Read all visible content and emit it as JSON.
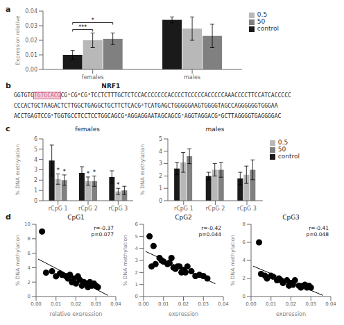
{
  "chart_data": [
    {
      "type": "bar",
      "panel_label": "a",
      "categories": [
        "females",
        "males"
      ],
      "series": [
        {
          "name": "control",
          "color": "#1a1a1a",
          "values": [
            0.01,
            0.034
          ],
          "errors": [
            0.003,
            0.002
          ]
        },
        {
          "name": "0.5",
          "color": "#b8b8b8",
          "values": [
            0.02,
            0.028
          ],
          "errors": [
            0.005,
            0.008
          ]
        },
        {
          "name": "50",
          "color": "#808080",
          "values": [
            0.021,
            0.023
          ],
          "errors": [
            0.004,
            0.008
          ]
        }
      ],
      "ylabel": "Expression relative",
      "ylim": [
        0,
        0.04
      ],
      "yticks": [
        {
          "value": 0,
          "label": "0.00"
        },
        0.01,
        0.02,
        0.03,
        0.04
      ],
      "legend": "right",
      "annotations": [
        {
          "text": "***",
          "category": "females",
          "between": [
            "control",
            "0.5"
          ]
        },
        {
          "text": "*",
          "category": "females",
          "between": [
            "control",
            "50"
          ]
        }
      ]
    },
    {
      "type": "sequence",
      "panel_label": "b",
      "title": "NRF1",
      "lines": [
        [
          {
            "text": "GGTGTG"
          },
          {
            "text": "TGTGCACG",
            "color": "#cc6688",
            "background": "#f5ccd8"
          },
          {
            "text": "CG¹CG²CG³TCCTCTTTGCTCTCCACCCCCCCACCCCTCCCCCACCCCCAAACCCCTTCCATCACCCCC"
          }
        ],
        [
          {
            "text": "CCCACTGCTAAGACTCTTGGCTGAGGCTGCTTCTCACG⁴TCATGAGCTGGGGGAAGTGGGGTAGCCAGGGGGGTGGGAA"
          }
        ],
        [
          {
            "text": "ACCTGAGTCCG⁵TGGTGCCTCCTCCTGGCAGCG⁶AGGAGGAATAGCAGCG⁷AGGTAGGACG⁸GCTTAGGGGTGAGGGGAC"
          }
        ]
      ]
    },
    {
      "type": "bar",
      "panel_label": "c",
      "title": "females",
      "categories": [
        "rCpG 1",
        "rCpG 2",
        "rCpG 3"
      ],
      "series": [
        {
          "name": "control",
          "color": "#1a1a1a",
          "values": [
            3.9,
            2.7,
            2.3
          ],
          "errors": [
            1.5,
            0.6,
            0.6
          ]
        },
        {
          "name": "0.5",
          "color": "#b8b8b8",
          "values": [
            2.1,
            1.9,
            0.9
          ],
          "errors": [
            0.5,
            0.4,
            0.3
          ]
        },
        {
          "name": "50",
          "color": "#808080",
          "values": [
            2.0,
            1.9,
            1.0
          ],
          "errors": [
            0.5,
            0.5,
            0.4
          ]
        }
      ],
      "ylabel": "% DNA methylation",
      "ylim": [
        0,
        6
      ],
      "yticks": [
        0,
        1,
        2,
        3,
        4,
        5,
        6
      ],
      "annotations": [
        {
          "text": "*",
          "category": "rCpG 1",
          "series": "0.5"
        },
        {
          "text": "*",
          "category": "rCpG 1",
          "series": "50"
        },
        {
          "text": "*",
          "category": "rCpG 2",
          "series": "0.5"
        },
        {
          "text": "*",
          "category": "rCpG 2",
          "series": "50"
        },
        {
          "text": "*",
          "category": "rCpG 3",
          "series": "0.5"
        }
      ]
    },
    {
      "type": "bar",
      "title": "males",
      "categories": [
        "rCpG 1",
        "rCpG 2",
        "rCpG 3"
      ],
      "series": [
        {
          "name": "control",
          "color": "#1a1a1a",
          "values": [
            2.6,
            2.0,
            1.8
          ],
          "errors": [
            0.5,
            0.3,
            0.5
          ]
        },
        {
          "name": "0.5",
          "color": "#b8b8b8",
          "values": [
            3.1,
            2.5,
            2.1
          ],
          "errors": [
            0.8,
            0.5,
            0.7
          ]
        },
        {
          "name": "50",
          "color": "#808080",
          "values": [
            3.6,
            2.5,
            2.5
          ],
          "errors": [
            0.6,
            0.6,
            0.8
          ]
        }
      ],
      "ylabel": "% DNA methylation",
      "ylim": [
        0,
        5
      ],
      "yticks": [
        0,
        1,
        2,
        3,
        4,
        5
      ],
      "legend": "right"
    },
    {
      "type": "scatter",
      "panel_label": "d",
      "title": "CpG1",
      "color": "black",
      "x": [
        0.003,
        0.005,
        0.008,
        0.01,
        0.012,
        0.013,
        0.015,
        0.016,
        0.017,
        0.018,
        0.019,
        0.02,
        0.021,
        0.022,
        0.023,
        0.024,
        0.025,
        0.026,
        0.027,
        0.028,
        0.029,
        0.03,
        0.031
      ],
      "values": [
        9.0,
        3.3,
        3.5,
        2.8,
        3.2,
        3.0,
        2.8,
        2.5,
        3.0,
        2.0,
        2.5,
        1.8,
        2.8,
        2.3,
        1.5,
        2.0,
        1.8,
        1.3,
        2.0,
        1.5,
        1.8,
        1.5,
        1.3
      ],
      "fit": {
        "x": [
          0.001,
          0.036
        ],
        "values": [
          5.1958,
          0.1585
        ]
      },
      "annotations": [
        {
          "text": "r=-0.37"
        },
        {
          "text": "p=0.077"
        }
      ],
      "xlabel": "relative expression",
      "ylabel": "% DNA methylation",
      "xlim": [
        0,
        0.04
      ],
      "ylim": [
        0,
        10
      ],
      "yticks": [
        0,
        2,
        4,
        6,
        8,
        10
      ],
      "xticks": [
        {
          "value": 0,
          "label": "0.00"
        },
        0.01,
        0.02,
        0.03,
        0.04
      ]
    },
    {
      "type": "scatter",
      "title": "CpG2",
      "color": "black",
      "x": [
        0.003,
        0.004,
        0.005,
        0.006,
        0.008,
        0.009,
        0.01,
        0.012,
        0.013,
        0.014,
        0.015,
        0.016,
        0.017,
        0.018,
        0.019,
        0.02,
        0.021,
        0.022,
        0.024,
        0.026,
        0.028,
        0.03,
        0.032
      ],
      "values": [
        5.0,
        2.5,
        4.2,
        2.7,
        3.2,
        3.0,
        2.9,
        2.7,
        2.8,
        3.2,
        2.4,
        2.3,
        2.5,
        2.5,
        2.0,
        2.2,
        2.0,
        2.5,
        2.1,
        1.7,
        1.8,
        1.7,
        1.5
      ],
      "fit": {
        "x": [
          0.001,
          0.036
        ],
        "values": [
          3.7477,
          1.0604
        ]
      },
      "annotations": [
        {
          "text": "r=-0.42"
        },
        {
          "text": "p=0.044"
        }
      ],
      "xlabel": "expression",
      "ylabel": "% DNA methylation",
      "xlim": [
        0,
        0.04
      ],
      "ylim": [
        0,
        6
      ],
      "yticks": [
        0,
        1,
        2,
        3,
        4,
        5,
        6
      ],
      "xticks": [
        {
          "value": 0,
          "label": "0.00"
        },
        0.01,
        0.02,
        0.03,
        0.04
      ]
    },
    {
      "type": "scatter",
      "title": "CpG3",
      "color": "black",
      "x": [
        0.004,
        0.005,
        0.007,
        0.008,
        0.01,
        0.011,
        0.013,
        0.014,
        0.015,
        0.016,
        0.018,
        0.019,
        0.02,
        0.021,
        0.022,
        0.024,
        0.025,
        0.026,
        0.027,
        0.028,
        0.029,
        0.03
      ],
      "values": [
        6.0,
        2.5,
        2.3,
        2.0,
        2.3,
        2.2,
        1.8,
        2.0,
        1.8,
        1.5,
        1.8,
        1.2,
        1.5,
        1.3,
        1.8,
        1.2,
        1.0,
        1.2,
        1.3,
        1.0,
        1.2,
        1.0
      ],
      "fit": {
        "x": [
          0.001,
          0.036
        ],
        "values": [
          3.3736,
          0.1272
        ]
      },
      "annotations": [
        {
          "text": "r=-0.41"
        },
        {
          "text": "p=0.048"
        }
      ],
      "xlabel": "expression",
      "ylabel": "% DNA methylation",
      "xlim": [
        0,
        0.04
      ],
      "ylim": [
        0,
        8
      ],
      "yticks": [
        0,
        2,
        4,
        6,
        8
      ],
      "xticks": [
        {
          "value": 0,
          "label": "0.00"
        },
        0.01,
        0.02,
        0.03,
        0.04
      ]
    }
  ]
}
